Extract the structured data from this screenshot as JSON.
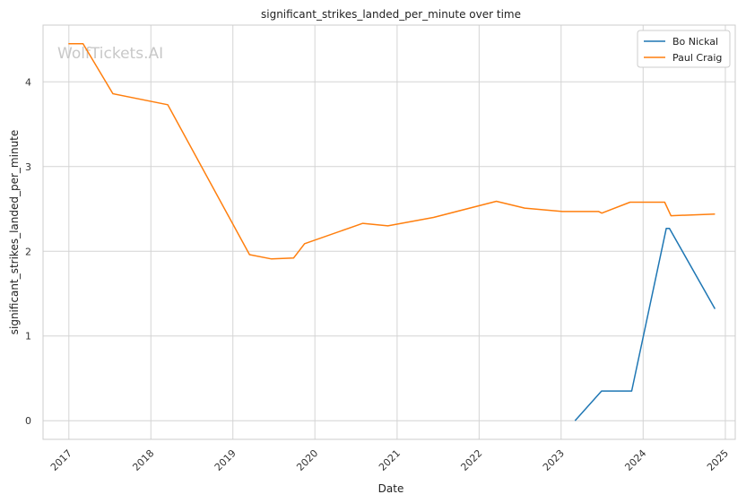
{
  "chart_data": {
    "type": "line",
    "title": "significant_strikes_landed_per_minute over time",
    "xlabel": "Date",
    "ylabel": "significant_strikes_landed_per_minute",
    "watermark": "WolfTickets.AI",
    "x_ticks": [
      "2017",
      "2018",
      "2019",
      "2020",
      "2021",
      "2022",
      "2023",
      "2024",
      "2025"
    ],
    "y_ticks": [
      "0",
      "1",
      "2",
      "3",
      "4"
    ],
    "xlim": [
      "2016-09-08",
      "2025-02-14"
    ],
    "ylim": [
      -0.22,
      4.67
    ],
    "grid": true,
    "legend_position": "top-right",
    "series": [
      {
        "name": "Bo Nickal",
        "color": "#1f77b4",
        "points": [
          [
            "2023-03-04",
            0.0
          ],
          [
            "2023-06-30",
            0.35
          ],
          [
            "2023-11-11",
            0.35
          ],
          [
            "2024-04-13",
            2.27
          ],
          [
            "2024-04-27",
            2.27
          ],
          [
            "2024-11-16",
            1.32
          ]
        ]
      },
      {
        "name": "Paul Craig",
        "color": "#ff7f0e",
        "points": [
          [
            "2016-12-30",
            4.45
          ],
          [
            "2017-03-05",
            4.45
          ],
          [
            "2017-07-16",
            3.86
          ],
          [
            "2018-03-17",
            3.73
          ],
          [
            "2019-03-16",
            1.96
          ],
          [
            "2019-06-22",
            1.91
          ],
          [
            "2019-09-28",
            1.92
          ],
          [
            "2019-11-16",
            2.09
          ],
          [
            "2020-08-01",
            2.33
          ],
          [
            "2020-11-21",
            2.3
          ],
          [
            "2021-06-12",
            2.4
          ],
          [
            "2022-03-19",
            2.59
          ],
          [
            "2022-07-23",
            2.51
          ],
          [
            "2023-01-07",
            2.47
          ],
          [
            "2023-06-17",
            2.47
          ],
          [
            "2023-07-01",
            2.45
          ],
          [
            "2023-11-04",
            2.58
          ],
          [
            "2024-04-06",
            2.58
          ],
          [
            "2024-05-04",
            2.42
          ],
          [
            "2024-11-16",
            2.44
          ]
        ]
      }
    ]
  }
}
